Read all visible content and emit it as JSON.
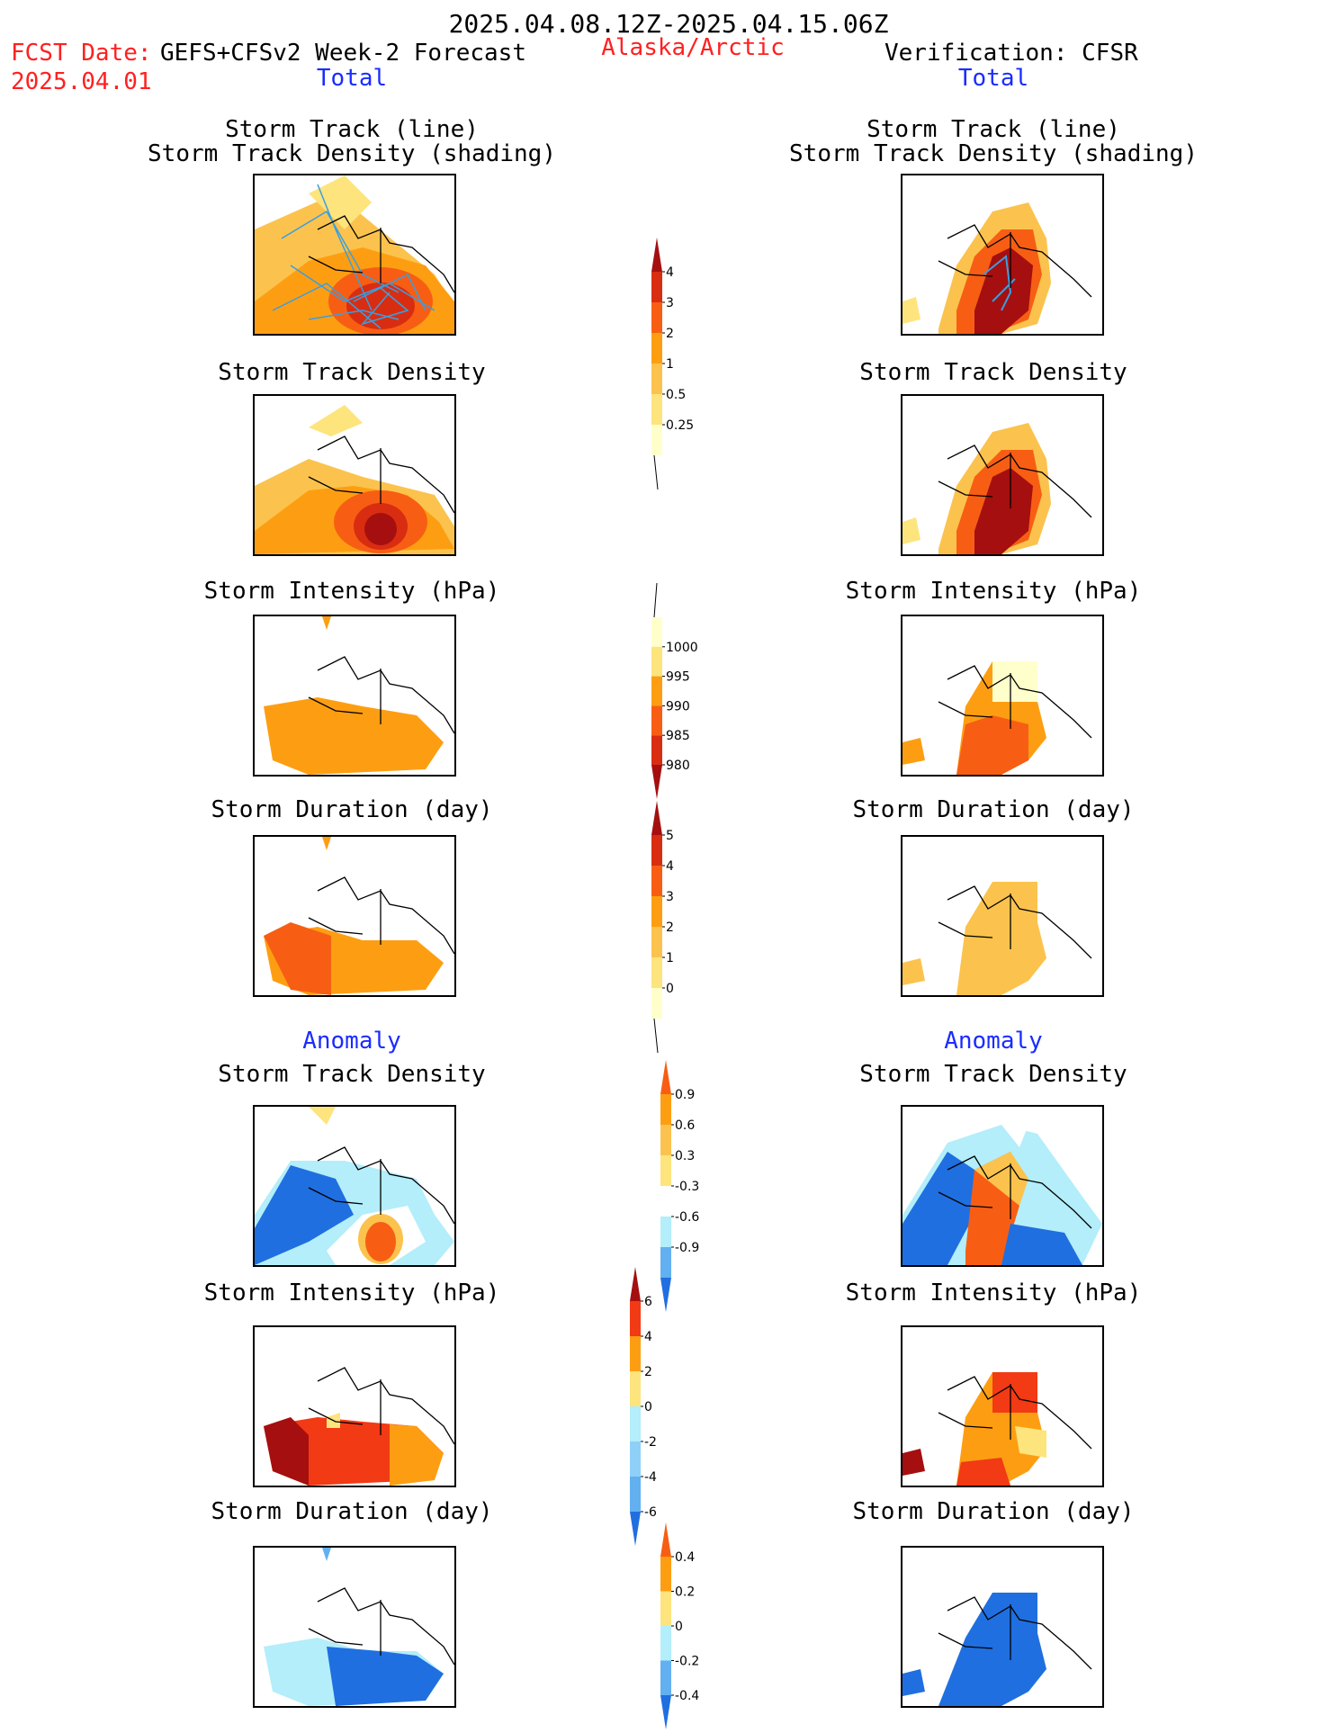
{
  "header": {
    "date_range": "2025.04.08.12Z-2025.04.15.06Z",
    "fcst_label": "FCST Date:",
    "fcst_model": "GEFS+CFSv2 Week-2 Forecast",
    "fcst_date": "2025.04.01",
    "region": "Alaska/Arctic",
    "verification": "Verification: CFSR",
    "left_total": "Total",
    "right_total": "Total",
    "left_anomaly": "Anomaly",
    "right_anomaly": "Anomaly"
  },
  "panels": {
    "left": [
      {
        "title_1": "Storm Track (line)",
        "title_2": "Storm Track Density (shading)"
      },
      {
        "title_1": "Storm Track Density"
      },
      {
        "title_1": "Storm Intensity (hPa)"
      },
      {
        "title_1": "Storm Duration (day)"
      },
      {
        "title_1": "Storm Track Density"
      },
      {
        "title_1": "Storm Intensity (hPa)"
      },
      {
        "title_1": "Storm Duration (day)"
      }
    ],
    "right": [
      {
        "title_1": "Storm Track (line)",
        "title_2": "Storm Track Density (shading)"
      },
      {
        "title_1": "Storm Track Density"
      },
      {
        "title_1": "Storm Intensity (hPa)"
      },
      {
        "title_1": "Storm Duration (day)"
      },
      {
        "title_1": "Storm Track Density"
      },
      {
        "title_1": "Storm Intensity (hPa)"
      },
      {
        "title_1": "Storm Duration (day)"
      }
    ]
  },
  "colorbars": {
    "density": {
      "labels": [
        "4",
        "3",
        "2",
        "1",
        "0.5",
        "0.25"
      ],
      "colors": [
        "#a50f0f",
        "#d92d12",
        "#f75e14",
        "#fd9e12",
        "#fbc34d",
        "#fde47d",
        "#ffffcc"
      ]
    },
    "intensity": {
      "labels": [
        "1000",
        "995",
        "990",
        "985",
        "980"
      ],
      "colors": [
        "#ffffcc",
        "#fde47d",
        "#fd9e12",
        "#f75e14",
        "#d92d12",
        "#a50f0f"
      ]
    },
    "duration": {
      "labels": [
        "5",
        "4",
        "3",
        "2",
        "1",
        "0"
      ],
      "colors": [
        "#a50f0f",
        "#d92d12",
        "#f75e14",
        "#fd9e12",
        "#fbc34d",
        "#fde47d",
        "#ffffcc"
      ]
    },
    "density_anom": {
      "labels": [
        "0.9",
        "0.6",
        "0.3",
        "-0.3",
        "-0.6",
        "-0.9"
      ],
      "colors": [
        "#f75e14",
        "#fd9e12",
        "#fbc34d",
        "#fde47d",
        "#ffffff",
        "#b3eefa",
        "#63b0f0",
        "#1f6fe0"
      ]
    },
    "intensity_anom": {
      "labels": [
        "6",
        "4",
        "2",
        "0",
        "-2",
        "-4",
        "-6"
      ],
      "colors": [
        "#a50f0f",
        "#f23a14",
        "#fd9e12",
        "#fde47d",
        "#b3eefa",
        "#8fd0f8",
        "#63b0f0",
        "#1f6fe0"
      ]
    },
    "duration_anom": {
      "labels": [
        "0.4",
        "0.2",
        "0",
        "-0.2",
        "-0.4"
      ],
      "colors": [
        "#f75e14",
        "#fd9e12",
        "#fde47d",
        "#b3eefa",
        "#63b0f0",
        "#1f6fe0"
      ]
    }
  }
}
